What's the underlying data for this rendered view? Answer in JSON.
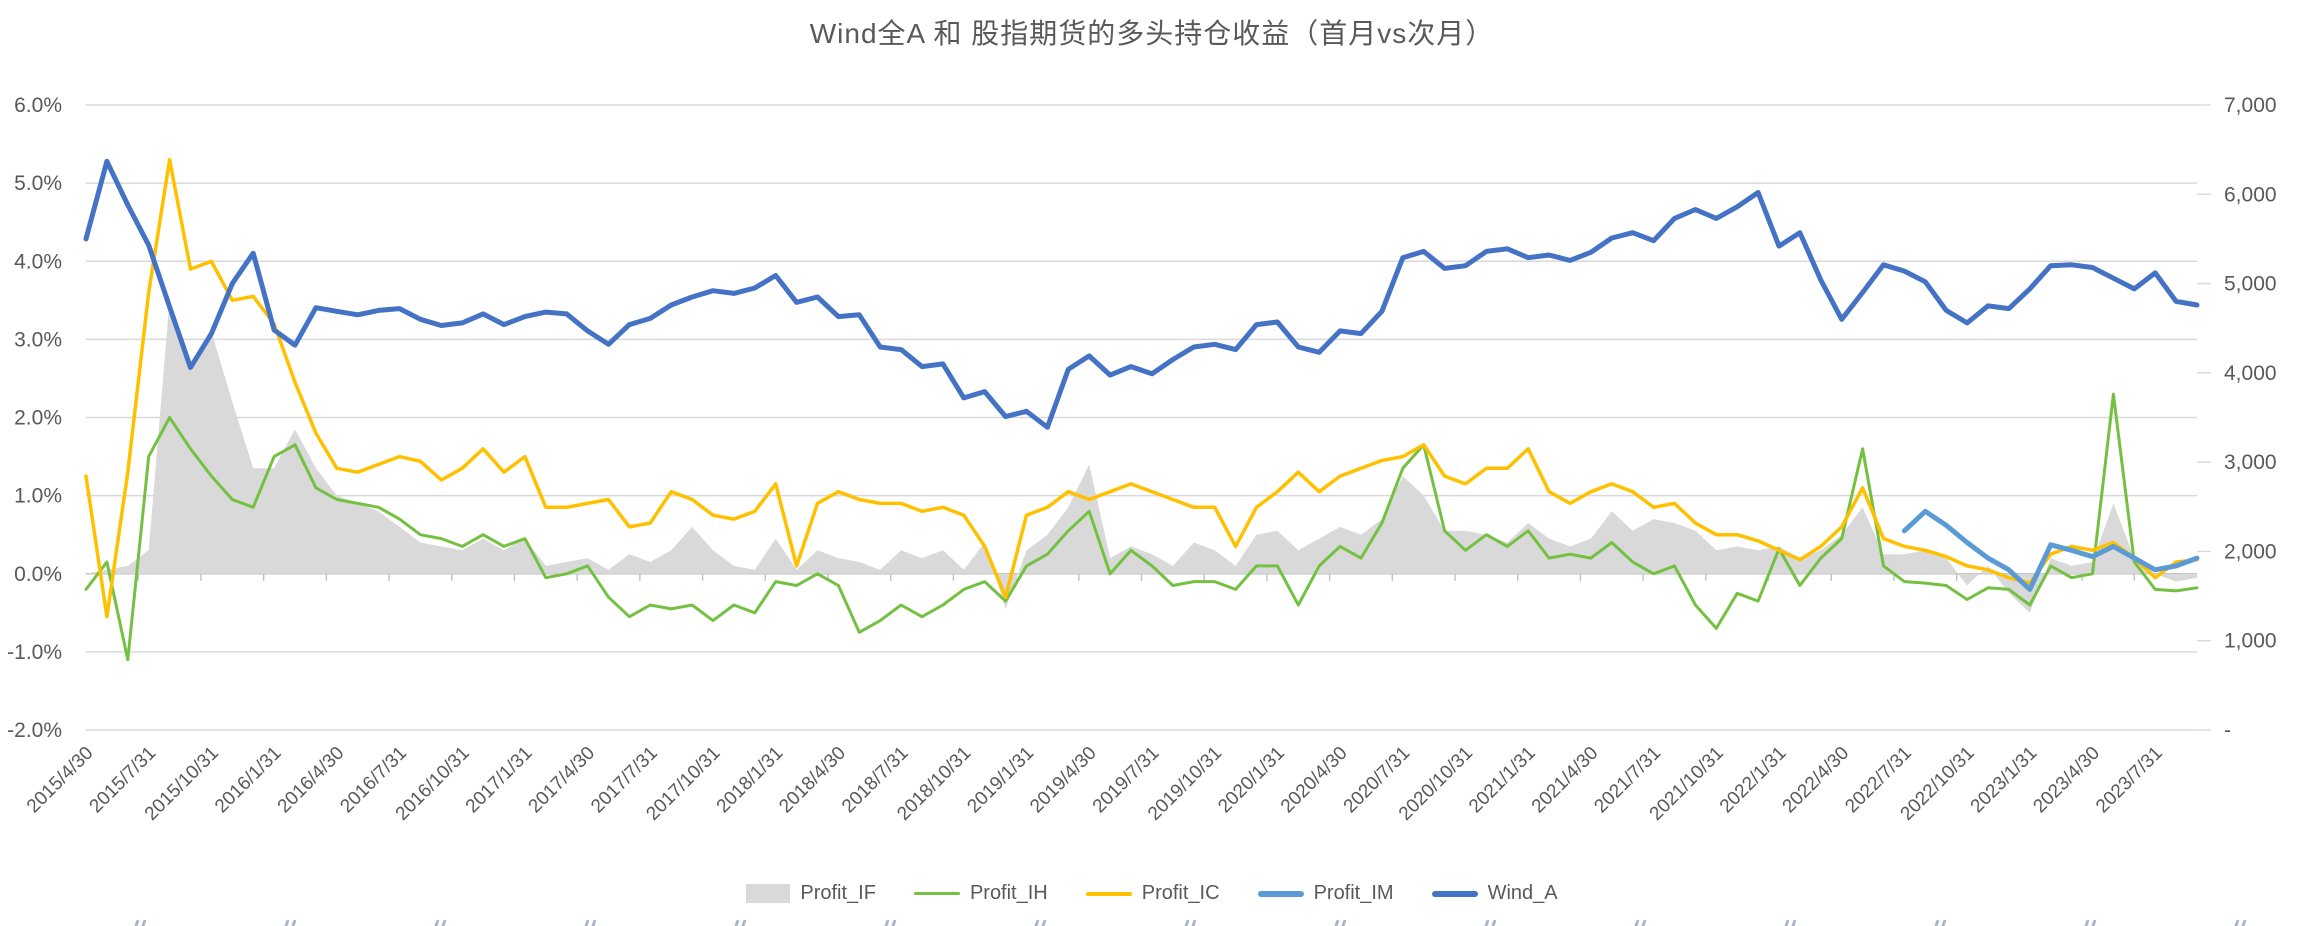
{
  "chart_data": {
    "type": "combo",
    "title": "Wind全A 和 股指期货的多头持仓收益（首月vs次月）",
    "categories": [
      "2015/4/30",
      "2015/5/31",
      "2015/6/30",
      "2015/7/31",
      "2015/8/31",
      "2015/9/30",
      "2015/10/31",
      "2015/11/30",
      "2015/12/31",
      "2016/1/31",
      "2016/2/29",
      "2016/3/31",
      "2016/4/30",
      "2016/5/31",
      "2016/6/30",
      "2016/7/31",
      "2016/8/31",
      "2016/9/30",
      "2016/10/31",
      "2016/11/30",
      "2016/12/31",
      "2017/1/31",
      "2017/2/28",
      "2017/3/31",
      "2017/4/30",
      "2017/5/31",
      "2017/6/30",
      "2017/7/31",
      "2017/8/31",
      "2017/9/30",
      "2017/10/31",
      "2017/11/30",
      "2017/12/31",
      "2018/1/31",
      "2018/2/28",
      "2018/3/31",
      "2018/4/30",
      "2018/5/31",
      "2018/6/30",
      "2018/7/31",
      "2018/8/31",
      "2018/9/30",
      "2018/10/31",
      "2018/11/30",
      "2018/12/31",
      "2019/1/31",
      "2019/2/28",
      "2019/3/31",
      "2019/4/30",
      "2019/5/31",
      "2019/6/30",
      "2019/7/31",
      "2019/8/31",
      "2019/9/30",
      "2019/10/31",
      "2019/11/30",
      "2019/12/31",
      "2020/1/31",
      "2020/2/29",
      "2020/3/31",
      "2020/4/30",
      "2020/5/31",
      "2020/6/30",
      "2020/7/31",
      "2020/8/31",
      "2020/9/30",
      "2020/10/31",
      "2020/11/30",
      "2020/12/31",
      "2021/1/31",
      "2021/2/28",
      "2021/3/31",
      "2021/4/30",
      "2021/5/31",
      "2021/6/30",
      "2021/7/31",
      "2021/8/31",
      "2021/9/30",
      "2021/10/31",
      "2021/11/30",
      "2021/12/31",
      "2022/1/31",
      "2022/2/28",
      "2022/3/31",
      "2022/4/30",
      "2022/5/31",
      "2022/6/30",
      "2022/7/31",
      "2022/8/31",
      "2022/9/30",
      "2022/10/31",
      "2022/11/30",
      "2022/12/31",
      "2023/1/31",
      "2023/2/28",
      "2023/3/31",
      "2023/4/30",
      "2023/5/31",
      "2023/6/30",
      "2023/7/31",
      "2023/8/31",
      "2023/9/30"
    ],
    "x_tick_every": 3,
    "axes": {
      "left": {
        "unit": "%",
        "min": -2.0,
        "max": 6.0,
        "tick_labels": [
          "6.0%",
          "5.0%",
          "4.0%",
          "3.0%",
          "2.0%",
          "1.0%",
          "0.0%",
          "-1.0%",
          "-2.0%"
        ]
      },
      "right": {
        "unit": "index",
        "min": 0,
        "max": 7000,
        "tick_labels": [
          "7,000",
          "6,000",
          "5,000",
          "4,000",
          "3,000",
          "2,000",
          "1,000",
          "-"
        ]
      }
    },
    "grid": "horizontal",
    "legend_position": "bottom",
    "series": [
      {
        "name": "Profit_IF",
        "type": "area",
        "axis": "left",
        "color": "#D9D9D9",
        "values": [
          0.0,
          0.05,
          0.1,
          0.3,
          3.5,
          2.6,
          3.1,
          2.2,
          1.35,
          1.35,
          1.85,
          1.35,
          1.0,
          0.9,
          0.8,
          0.6,
          0.4,
          0.35,
          0.3,
          0.45,
          0.3,
          0.45,
          0.1,
          0.15,
          0.2,
          0.05,
          0.25,
          0.15,
          0.3,
          0.6,
          0.3,
          0.1,
          0.05,
          0.45,
          0.05,
          0.3,
          0.2,
          0.15,
          0.05,
          0.3,
          0.2,
          0.3,
          0.05,
          0.4,
          -0.45,
          0.3,
          0.5,
          0.85,
          1.4,
          0.2,
          0.35,
          0.25,
          0.1,
          0.4,
          0.3,
          0.1,
          0.5,
          0.55,
          0.3,
          0.45,
          0.6,
          0.5,
          0.7,
          1.25,
          1.0,
          0.55,
          0.55,
          0.5,
          0.4,
          0.65,
          0.45,
          0.35,
          0.45,
          0.8,
          0.55,
          0.7,
          0.65,
          0.55,
          0.3,
          0.35,
          0.3,
          0.35,
          0.2,
          0.3,
          0.5,
          0.85,
          0.25,
          0.25,
          0.3,
          0.2,
          -0.15,
          0.1,
          -0.25,
          -0.5,
          0.2,
          0.1,
          0.15,
          0.9,
          0.2,
          0.0,
          -0.1,
          -0.05
        ]
      },
      {
        "name": "Profit_IH",
        "type": "line",
        "axis": "left",
        "color": "#74C142",
        "stroke_width": 3,
        "values": [
          -0.2,
          0.15,
          -1.1,
          1.5,
          2.0,
          1.6,
          1.25,
          0.95,
          0.85,
          1.5,
          1.65,
          1.1,
          0.95,
          0.9,
          0.85,
          0.7,
          0.5,
          0.45,
          0.35,
          0.5,
          0.35,
          0.45,
          -0.05,
          0.0,
          0.1,
          -0.3,
          -0.55,
          -0.4,
          -0.45,
          -0.4,
          -0.6,
          -0.4,
          -0.5,
          -0.1,
          -0.15,
          0.0,
          -0.15,
          -0.75,
          -0.6,
          -0.4,
          -0.55,
          -0.4,
          -0.2,
          -0.1,
          -0.35,
          0.1,
          0.25,
          0.55,
          0.8,
          0.0,
          0.3,
          0.1,
          -0.15,
          -0.1,
          -0.1,
          -0.2,
          0.1,
          0.1,
          -0.4,
          0.1,
          0.35,
          0.2,
          0.65,
          1.35,
          1.65,
          0.55,
          0.3,
          0.5,
          0.35,
          0.55,
          0.2,
          0.25,
          0.2,
          0.4,
          0.15,
          0.0,
          0.1,
          -0.4,
          -0.7,
          -0.25,
          -0.35,
          0.32,
          -0.15,
          0.2,
          0.45,
          1.6,
          0.1,
          -0.1,
          -0.12,
          -0.15,
          -0.33,
          -0.18,
          -0.2,
          -0.4,
          0.1,
          -0.05,
          0.0,
          2.3,
          0.15,
          -0.2,
          -0.22,
          -0.18
        ]
      },
      {
        "name": "Profit_IC",
        "type": "line",
        "axis": "left",
        "color": "#FFC000",
        "stroke_width": 3.5,
        "values": [
          1.25,
          -0.55,
          1.3,
          3.6,
          5.3,
          3.9,
          4.0,
          3.5,
          3.55,
          3.2,
          2.45,
          1.8,
          1.35,
          1.3,
          1.4,
          1.5,
          1.44,
          1.2,
          1.35,
          1.6,
          1.3,
          1.5,
          0.85,
          0.85,
          0.9,
          0.95,
          0.6,
          0.65,
          1.05,
          0.95,
          0.75,
          0.7,
          0.8,
          1.15,
          0.1,
          0.9,
          1.05,
          0.95,
          0.9,
          0.9,
          0.8,
          0.85,
          0.75,
          0.35,
          -0.3,
          0.75,
          0.85,
          1.05,
          0.95,
          1.05,
          1.15,
          1.05,
          0.95,
          0.85,
          0.85,
          0.35,
          0.85,
          1.05,
          1.3,
          1.05,
          1.25,
          1.35,
          1.45,
          1.5,
          1.65,
          1.25,
          1.15,
          1.35,
          1.35,
          1.6,
          1.05,
          0.9,
          1.05,
          1.15,
          1.05,
          0.85,
          0.9,
          0.65,
          0.5,
          0.5,
          0.42,
          0.3,
          0.18,
          0.35,
          0.6,
          1.1,
          0.45,
          0.35,
          0.3,
          0.22,
          0.1,
          0.05,
          -0.05,
          -0.12,
          0.25,
          0.35,
          0.3,
          0.4,
          0.2,
          -0.05,
          0.15,
          0.18
        ]
      },
      {
        "name": "Profit_IM",
        "type": "line",
        "axis": "left",
        "color": "#5B9BD5",
        "stroke_width": 5,
        "start_index": 87,
        "values": [
          0.55,
          0.8,
          0.62,
          0.4,
          0.2,
          0.05,
          -0.2,
          0.37,
          0.3,
          0.22,
          0.35,
          0.2,
          0.05,
          0.1,
          0.2
        ]
      },
      {
        "name": "Wind_A",
        "type": "line",
        "axis": "right",
        "color": "#4472C4",
        "stroke_width": 5,
        "values": [
          5500,
          6370,
          5880,
          5430,
          4740,
          4060,
          4440,
          5000,
          5340,
          4480,
          4310,
          4730,
          4690,
          4650,
          4700,
          4720,
          4600,
          4530,
          4560,
          4660,
          4540,
          4630,
          4680,
          4660,
          4470,
          4320,
          4540,
          4610,
          4760,
          4850,
          4920,
          4890,
          4950,
          5090,
          4790,
          4850,
          4630,
          4650,
          4290,
          4260,
          4070,
          4100,
          3720,
          3790,
          3510,
          3570,
          3390,
          4040,
          4190,
          3975,
          4070,
          3990,
          4150,
          4290,
          4320,
          4260,
          4540,
          4570,
          4290,
          4230,
          4470,
          4440,
          4690,
          5290,
          5360,
          5170,
          5200,
          5360,
          5390,
          5290,
          5320,
          5260,
          5350,
          5510,
          5570,
          5480,
          5730,
          5830,
          5730,
          5860,
          6020,
          5420,
          5570,
          5040,
          4600,
          4900,
          5210,
          5140,
          5020,
          4700,
          4560,
          4750,
          4720,
          4940,
          5200,
          5210,
          5180,
          5060,
          4940,
          5120,
          4800,
          4760
        ]
      }
    ]
  },
  "legend": {
    "items": [
      {
        "label": "Profit_IF",
        "swatch": "area",
        "color": "#D9D9D9"
      },
      {
        "label": "Profit_IH",
        "swatch": "line",
        "color": "#74C142",
        "thickness": 3
      },
      {
        "label": "Profit_IC",
        "swatch": "line",
        "color": "#FFC000",
        "thickness": 4
      },
      {
        "label": "Profit_IM",
        "swatch": "line",
        "color": "#5B9BD5",
        "thickness": 6
      },
      {
        "label": "Wind_A",
        "swatch": "line",
        "color": "#4472C4",
        "thickness": 6
      }
    ]
  },
  "styles": {
    "gridline_color": "#D9D9D9",
    "zero_line_color": "#BFBFBF",
    "axis_text_color": "#595959",
    "title_color": "#595959"
  },
  "footer_clipped_marks_count": 15
}
